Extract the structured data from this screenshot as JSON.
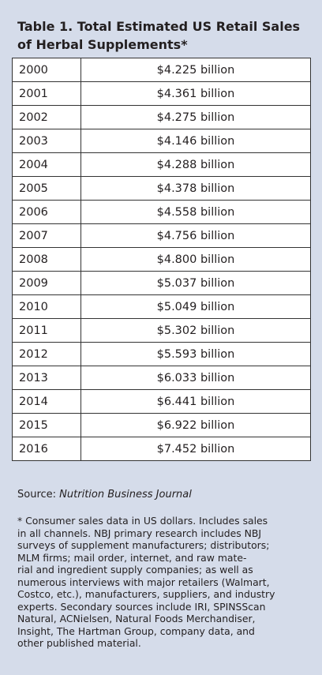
{
  "title": "Table 1. Total Estimated US Retail Sales of Herbal Supplements*",
  "table": {
    "rows": [
      [
        "2000",
        "$4.225 billion"
      ],
      [
        "2001",
        "$4.361 billion"
      ],
      [
        "2002",
        "$4.275 billion"
      ],
      [
        "2003",
        "$4.146 billion"
      ],
      [
        "2004",
        "$4.288 billion"
      ],
      [
        "2005",
        "$4.378 billion"
      ],
      [
        "2006",
        "$4.558 billion"
      ],
      [
        "2007",
        "$4.756 billion"
      ],
      [
        "2008",
        "$4.800 billion"
      ],
      [
        "2009",
        "$5.037 billion"
      ],
      [
        "2010",
        "$5.049 billion"
      ],
      [
        "2011",
        "$5.302 billion"
      ],
      [
        "2012",
        "$5.593 billion"
      ],
      [
        "2013",
        "$6.033 billion"
      ],
      [
        "2014",
        "$6.441 billion"
      ],
      [
        "2015",
        "$6.922 billion"
      ],
      [
        "2016",
        "$7.452 billion"
      ]
    ]
  },
  "source": {
    "label": "Source:",
    "name": "Nutrition Business Journal"
  },
  "footnote": [
    "* Consumer sales data in US dollars. Includes sales",
    "in all channels. NBJ primary research includes NBJ",
    "surveys of supplement manufacturers; distributors;",
    "MLM firms; mail order, internet, and raw mate-",
    "rial and ingredient supply companies; as well as",
    "numerous interviews with major retailers (Walmart,",
    "Costco, etc.), manufacturers, suppliers, and industry",
    "experts. Secondary sources include IRI, SPINSScan",
    "Natural, ACNielsen, Natural Foods Merchandiser,",
    "Insight, The Hartman Group, company data, and",
    "other published material."
  ]
}
